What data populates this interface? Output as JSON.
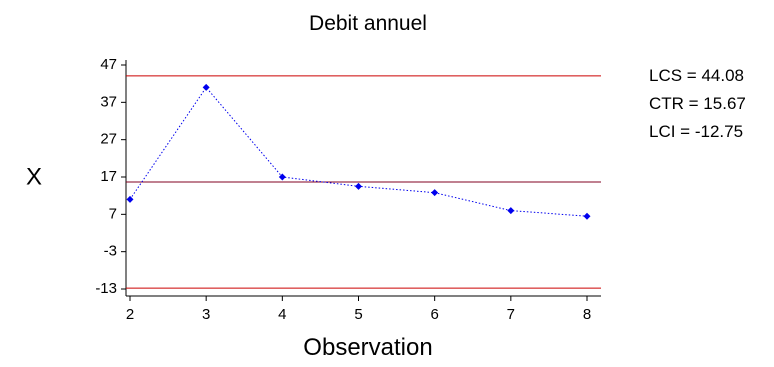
{
  "chart_data": {
    "type": "line",
    "title": "Debit annuel",
    "xlabel": "Observation",
    "ylabel": "X",
    "x": [
      2,
      3,
      4,
      5,
      6,
      7,
      8
    ],
    "series": [
      {
        "values": [
          11,
          41,
          17,
          14.5,
          12.8,
          8,
          6.5
        ]
      }
    ],
    "xticks": [
      "2",
      "3",
      "4",
      "5",
      "6",
      "7",
      "8"
    ],
    "yticks": [
      "47",
      "37",
      "27",
      "17",
      "7",
      "-3",
      "-13"
    ],
    "ylim": [
      -13,
      47
    ],
    "xlim": [
      2,
      8
    ],
    "grid": false,
    "control_limits": [
      {
        "name": "LCS",
        "value": 44.08,
        "label": "LCS = 44.08"
      },
      {
        "name": "CTR",
        "value": 15.67,
        "label": "CTR = 15.67"
      },
      {
        "name": "LCI",
        "value": -12.75,
        "label": "LCI = -12.75"
      }
    ],
    "colors": {
      "series": "#0000ee",
      "limit_lines": "#cc0000",
      "center_line": "#800020",
      "axis": "#000000"
    }
  }
}
